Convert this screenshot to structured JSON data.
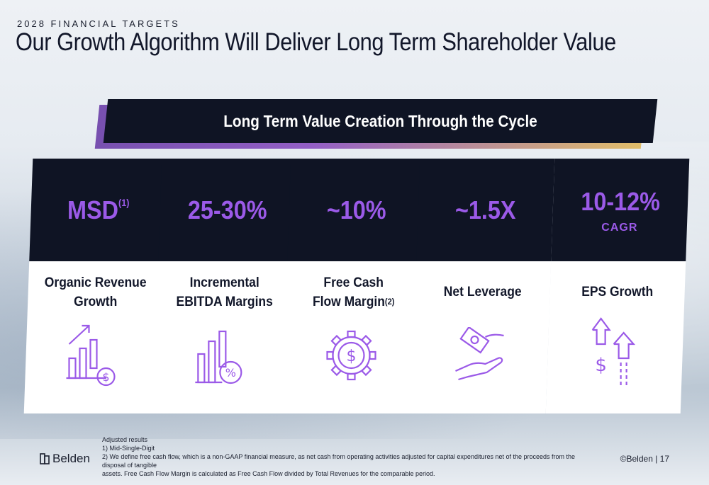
{
  "header": {
    "eyebrow": "2028 FINANCIAL TARGETS",
    "title": "Our Growth Algorithm Will Deliver Long Term Shareholder Value"
  },
  "banner": {
    "text": "Long Term Value Creation Through the Cycle"
  },
  "cards": [
    {
      "metric": "MSD",
      "metric_sup": "(1)",
      "metric_sub": "",
      "label_line1": "Organic Revenue",
      "label_line2": "Growth",
      "label_sup": "",
      "icon": "revenue-growth-chart-icon"
    },
    {
      "metric": "25-30%",
      "metric_sup": "",
      "metric_sub": "",
      "label_line1": "Incremental",
      "label_line2": "EBITDA Margins",
      "label_sup": "",
      "icon": "percent-bar-chart-icon"
    },
    {
      "metric": "~10%",
      "metric_sup": "",
      "metric_sub": "",
      "label_line1": "Free Cash",
      "label_line2": "Flow Margin",
      "label_sup": "(2)",
      "icon": "dollar-gear-icon"
    },
    {
      "metric": "~1.5X",
      "metric_sup": "",
      "metric_sub": "",
      "label_line1": "Net Leverage",
      "label_line2": "",
      "label_sup": "",
      "icon": "cash-in-hand-icon"
    },
    {
      "metric": "10-12%",
      "metric_sup": "",
      "metric_sub": "CAGR",
      "label_line1": "EPS Growth",
      "label_line2": "",
      "label_sup": "",
      "icon": "dollar-up-arrows-icon"
    }
  ],
  "footnotes": {
    "line1": "Adjusted results",
    "line2": "1) Mid-Single-Digit",
    "line3": "2) We define free cash flow, which is a non-GAAP financial measure, as net cash from operating activities adjusted for capital expenditures net of the proceeds from the disposal of tangible",
    "line4": "assets. Free Cash Flow Margin is calculated as Free Cash Flow divided by Total Revenues for the comparable period."
  },
  "footer": {
    "logo_text": "Belden",
    "copyright": "©Belden  |  17"
  },
  "colors": {
    "accent": "#9b5ae8",
    "navy": "#0f1424"
  }
}
